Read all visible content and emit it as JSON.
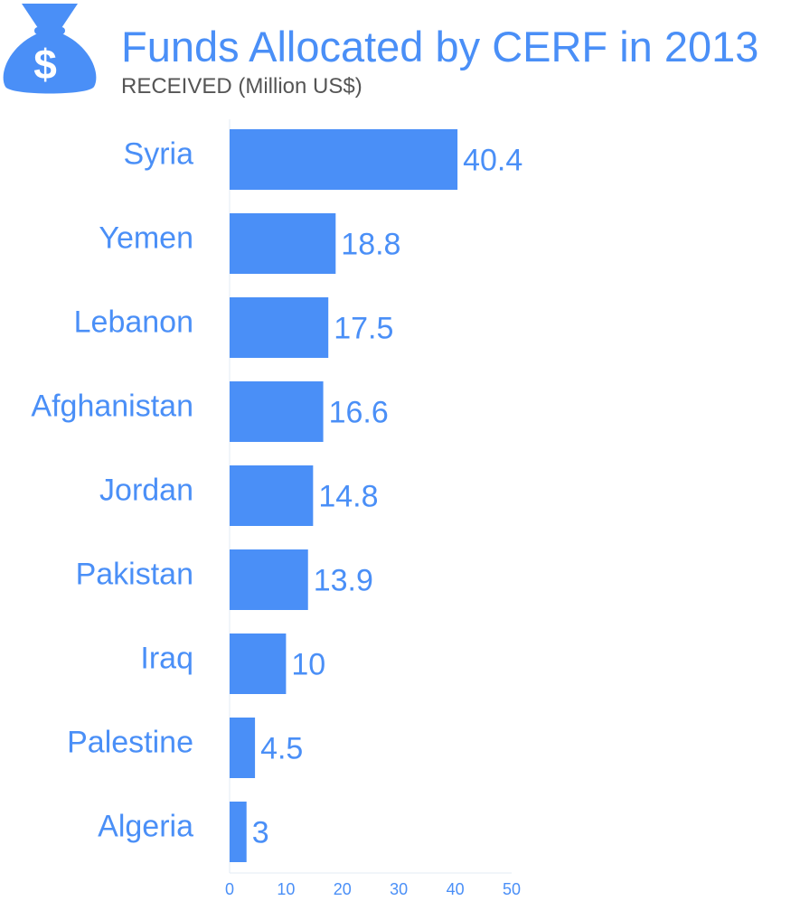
{
  "header": {
    "title": "Funds Allocated by CERF in 2013",
    "subtitle": "RECEIVED (Million US$)",
    "icon": "money-bag-dollar-icon"
  },
  "colors": {
    "accent": "#4a8ff7",
    "bar": "#4a8ff7",
    "subtitle": "#555555",
    "axis": "#e3ebf6",
    "icon_glyph": "#ffffff"
  },
  "chart_data": {
    "type": "bar",
    "orientation": "horizontal",
    "title": "Funds Allocated by CERF in 2013",
    "subtitle": "RECEIVED (Million US$)",
    "categories": [
      "Syria",
      "Yemen",
      "Lebanon",
      "Afghanistan",
      "Jordan",
      "Pakistan",
      "Iraq",
      "Palestine",
      "Algeria"
    ],
    "values": [
      40.4,
      18.8,
      17.5,
      16.6,
      14.8,
      13.9,
      10,
      4.5,
      3
    ],
    "data_labels": [
      "40.4",
      "18.8",
      "17.5",
      "16.6",
      "14.8",
      "13.9",
      "10",
      "4.5",
      "3"
    ],
    "xlim": [
      0,
      50
    ],
    "xticks": [
      0,
      10,
      20,
      30,
      40,
      50
    ],
    "xtick_labels": [
      "0",
      "10",
      "20",
      "30",
      "40",
      "50"
    ],
    "xlabel": "",
    "ylabel": "",
    "grid": false,
    "legend": "none"
  }
}
